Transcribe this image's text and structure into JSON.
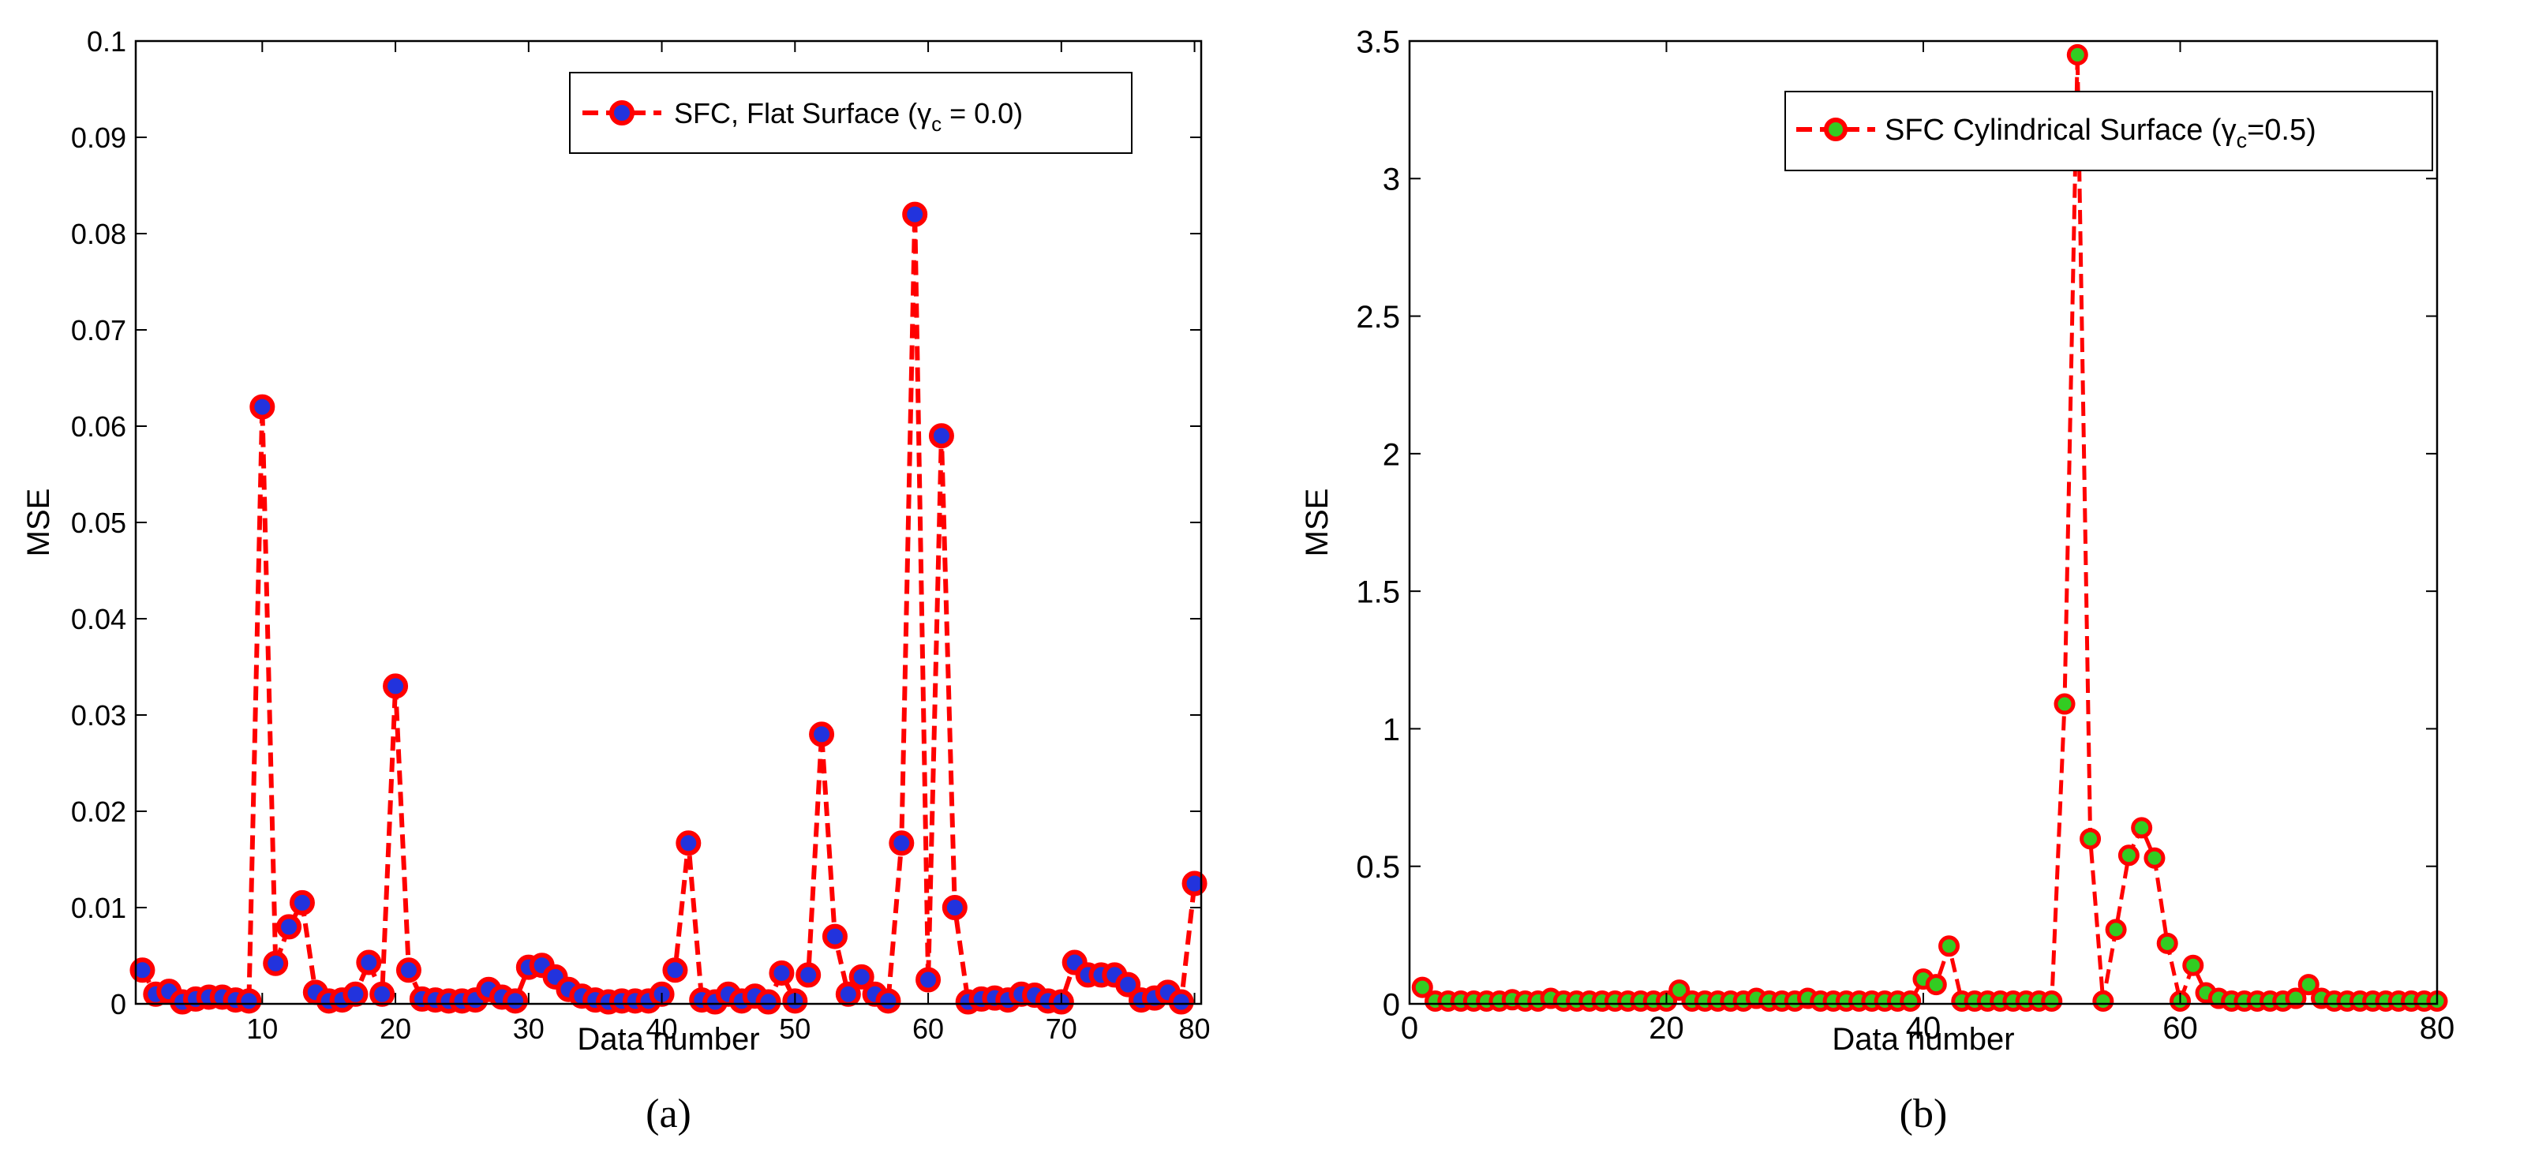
{
  "chart_data": [
    {
      "id": "a",
      "type": "line",
      "caption": "(a)",
      "xlabel": "Data number",
      "ylabel": "MSE",
      "xlim": [
        0.5,
        80.5
      ],
      "ylim": [
        0,
        0.1
      ],
      "xticks": [
        10,
        20,
        30,
        40,
        50,
        60,
        70,
        80
      ],
      "xtick_labels": [
        "10",
        "20",
        "30",
        "40",
        "50",
        "60",
        "70",
        "80"
      ],
      "yticks": [
        0,
        0.01,
        0.02,
        0.03,
        0.04,
        0.05,
        0.06,
        0.07,
        0.08,
        0.09,
        0.1
      ],
      "ytick_labels": [
        "0",
        "0.01",
        "0.02",
        "0.03",
        "0.04",
        "0.05",
        "0.06",
        "0.07",
        "0.08",
        "0.09",
        "0.1"
      ],
      "grid": false,
      "legend_position": "top-right",
      "series": [
        {
          "name": "SFC, Flat Surface (γc = 0.0)",
          "legend_prefix": "SFC, Flat Surface (",
          "legend_symbol": "γ",
          "legend_sub": "c",
          "legend_suffix": " = 0.0)",
          "line_color": "#ff0000",
          "marker_face": "#2233dd",
          "marker_edge": "#ff0000",
          "x": [
            1,
            2,
            3,
            4,
            5,
            6,
            7,
            8,
            9,
            10,
            11,
            12,
            13,
            14,
            15,
            16,
            17,
            18,
            19,
            20,
            21,
            22,
            23,
            24,
            25,
            26,
            27,
            28,
            29,
            30,
            31,
            32,
            33,
            34,
            35,
            36,
            37,
            38,
            39,
            40,
            41,
            42,
            43,
            44,
            45,
            46,
            47,
            48,
            49,
            50,
            51,
            52,
            53,
            54,
            55,
            56,
            57,
            58,
            59,
            60,
            61,
            62,
            63,
            64,
            65,
            66,
            67,
            68,
            69,
            70,
            71,
            72,
            73,
            74,
            75,
            76,
            77,
            78,
            79,
            80
          ],
          "values": [
            0.0035,
            0.001,
            0.0013,
            0.0002,
            0.0005,
            0.0007,
            0.0007,
            0.0004,
            0.0003,
            0.062,
            0.0042,
            0.008,
            0.0105,
            0.0012,
            0.0003,
            0.0004,
            0.001,
            0.0043,
            0.001,
            0.033,
            0.0035,
            0.0005,
            0.0004,
            0.0003,
            0.0003,
            0.0004,
            0.0015,
            0.0007,
            0.0003,
            0.0038,
            0.004,
            0.0028,
            0.0015,
            0.0008,
            0.0004,
            0.0002,
            0.0003,
            0.0003,
            0.0003,
            0.001,
            0.0035,
            0.0167,
            0.0004,
            0.0002,
            0.001,
            0.0003,
            0.0008,
            0.0002,
            0.0032,
            0.0003,
            0.003,
            0.028,
            0.007,
            0.001,
            0.0028,
            0.001,
            0.0003,
            0.0167,
            0.082,
            0.0025,
            0.059,
            0.01,
            0.0002,
            0.0005,
            0.0006,
            0.0004,
            0.001,
            0.0009,
            0.0003,
            0.0002,
            0.0043,
            0.003,
            0.003,
            0.003,
            0.002,
            0.0004,
            0.0006,
            0.0012,
            0.0002,
            0.0125
          ]
        }
      ]
    },
    {
      "id": "b",
      "type": "line",
      "caption": "(b)",
      "xlabel": "Data number",
      "ylabel": "MSE",
      "xlim": [
        0,
        80
      ],
      "ylim": [
        0,
        3.5
      ],
      "xticks": [
        0,
        20,
        40,
        60,
        80
      ],
      "xtick_labels": [
        "0",
        "20",
        "40",
        "60",
        "80"
      ],
      "yticks": [
        0,
        0.5,
        1,
        1.5,
        2,
        2.5,
        3,
        3.5
      ],
      "ytick_labels": [
        "0",
        "0.5",
        "1",
        "1.5",
        "2",
        "2.5",
        "3",
        "3.5"
      ],
      "grid": false,
      "legend_position": "top-right",
      "series": [
        {
          "name": "SFC Cylindrical Surface (γc=0.5)",
          "legend_prefix": "SFC Cylindrical Surface (",
          "legend_symbol": "γ",
          "legend_sub": "c",
          "legend_suffix": "=0.5)",
          "line_color": "#ff0000",
          "marker_face": "#33cc22",
          "marker_edge": "#ff0000",
          "x": [
            1,
            2,
            3,
            4,
            5,
            6,
            7,
            8,
            9,
            10,
            11,
            12,
            13,
            14,
            15,
            16,
            17,
            18,
            19,
            20,
            21,
            22,
            23,
            24,
            25,
            26,
            27,
            28,
            29,
            30,
            31,
            32,
            33,
            34,
            35,
            36,
            37,
            38,
            39,
            40,
            41,
            42,
            43,
            44,
            45,
            46,
            47,
            48,
            49,
            50,
            51,
            52,
            53,
            54,
            55,
            56,
            57,
            58,
            59,
            60,
            61,
            62,
            63,
            64,
            65,
            66,
            67,
            68,
            69,
            70,
            71,
            72,
            73,
            74,
            75,
            76,
            77,
            78,
            79,
            80
          ],
          "values": [
            0.06,
            0.01,
            0.01,
            0.01,
            0.01,
            0.01,
            0.01,
            0.015,
            0.01,
            0.01,
            0.02,
            0.01,
            0.01,
            0.01,
            0.01,
            0.01,
            0.01,
            0.01,
            0.01,
            0.01,
            0.05,
            0.01,
            0.01,
            0.01,
            0.01,
            0.01,
            0.02,
            0.01,
            0.01,
            0.01,
            0.02,
            0.01,
            0.01,
            0.01,
            0.01,
            0.01,
            0.01,
            0.01,
            0.01,
            0.09,
            0.07,
            0.21,
            0.01,
            0.01,
            0.01,
            0.01,
            0.01,
            0.01,
            0.01,
            0.01,
            1.09,
            3.45,
            0.6,
            0.01,
            0.27,
            0.54,
            0.64,
            0.53,
            0.22,
            0.01,
            0.14,
            0.04,
            0.02,
            0.01,
            0.01,
            0.01,
            0.01,
            0.01,
            0.02,
            0.07,
            0.02,
            0.01,
            0.01,
            0.01,
            0.01,
            0.01,
            0.01,
            0.01,
            0.01,
            0.01
          ]
        }
      ]
    }
  ]
}
